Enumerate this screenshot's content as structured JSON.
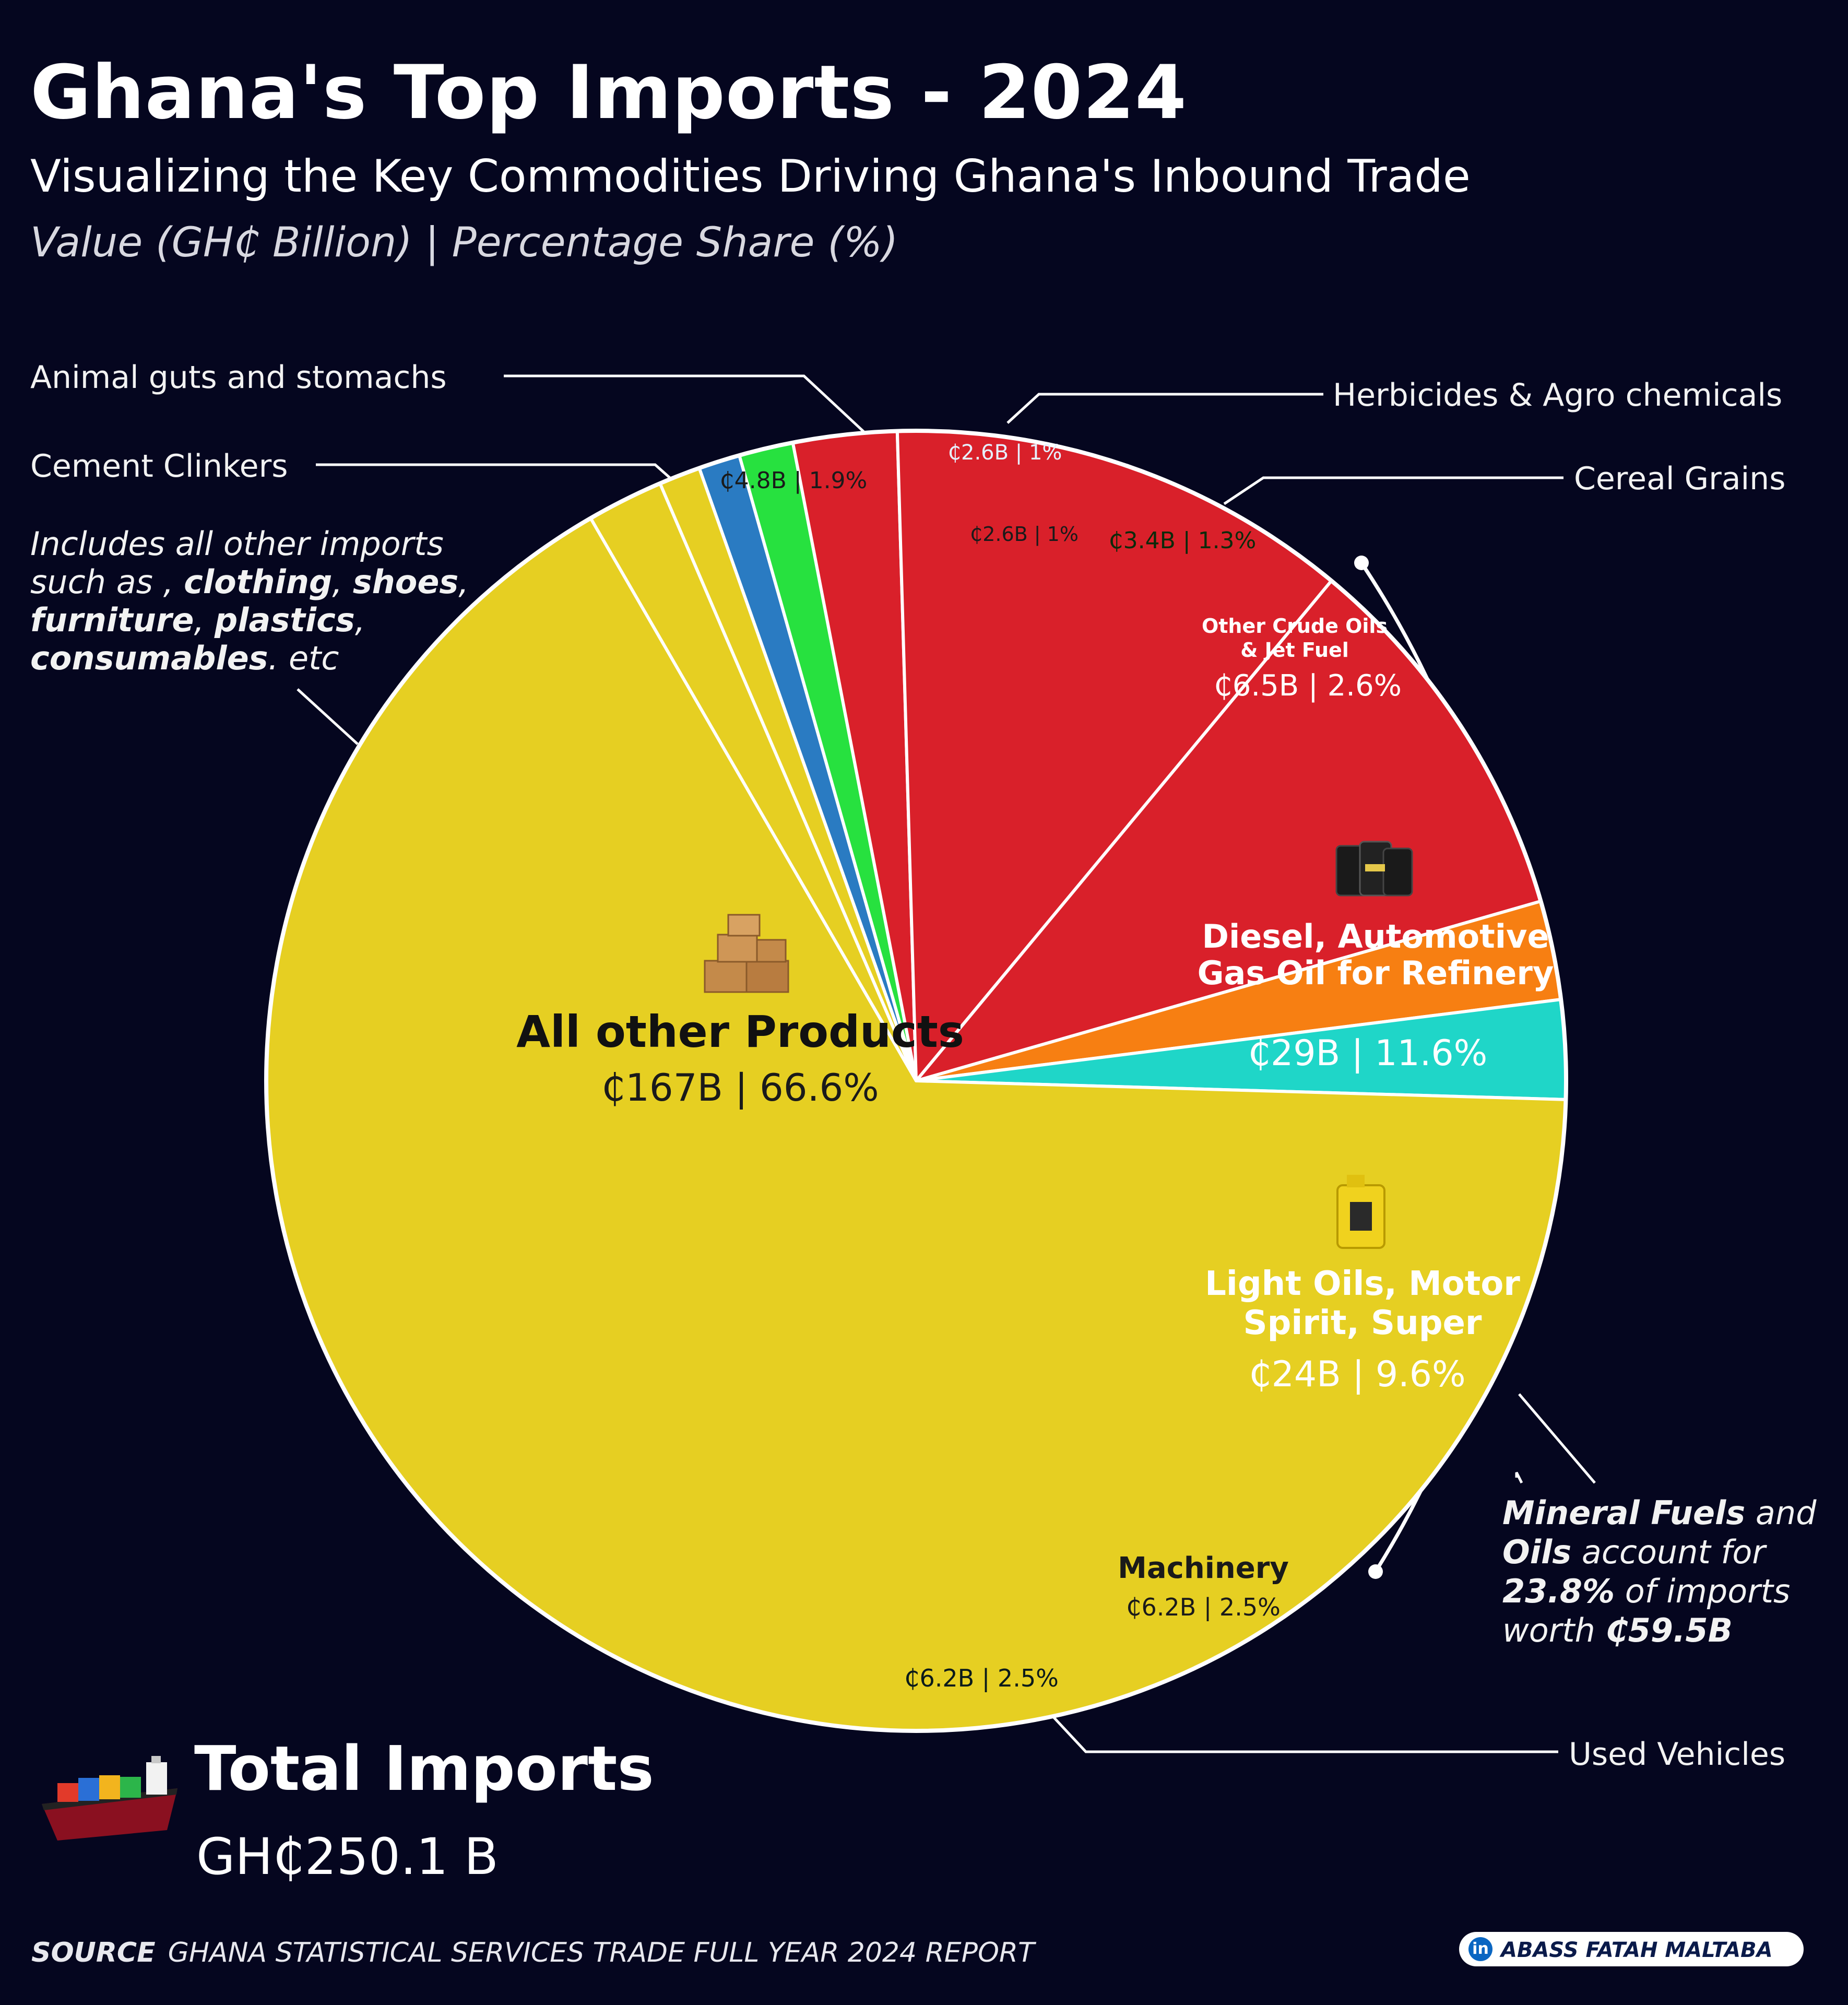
{
  "header": {
    "title": "Ghana's Top Imports - 2024",
    "subtitle": "Visualizing the Key Commodities Driving Ghana's Inbound Trade",
    "units": "Value (GH₵ Billion) | Percentage Share (%)"
  },
  "chart_data": {
    "type": "pie",
    "title": "Ghana's Top Imports - 2024",
    "subtitle": "Visualizing the Key Commodities Driving Ghana's Inbound Trade",
    "units": "Value (GH₵ Billion) | Percentage Share (%)",
    "slices": [
      {
        "label": "Herbicides & Agro chemicals",
        "value": 2.6,
        "share": 1.0,
        "value_text": "₵2.6B | 1%",
        "color": "#2a7bc2"
      },
      {
        "label": "Cereal Grains",
        "value": 3.4,
        "share": 1.3,
        "value_text": "₵3.4B | 1.3%",
        "color": "#27e13f"
      },
      {
        "label": "Other Crude Oils & Jet Fuel",
        "value": 6.5,
        "share": 2.6,
        "value_text": "₵6.5B | 2.6%",
        "color": "#d9202a"
      },
      {
        "label": "Diesel, Automotive Gas Oil for Refinery",
        "value": 29,
        "share": 11.6,
        "value_text": "₵29B | 11.6%",
        "color": "#d9202a"
      },
      {
        "label": "Light Oils, Motor Spirit, Super",
        "value": 24,
        "share": 9.6,
        "value_text": "₵24B | 9.6%",
        "color": "#d9202a"
      },
      {
        "label": "Machinery",
        "value": 6.2,
        "share": 2.5,
        "value_text": "₵6.2B | 2.5%",
        "color": "#f77f12"
      },
      {
        "label": "Used Vehicles",
        "value": 6.2,
        "share": 2.5,
        "value_text": "₵6.2B | 2.5%",
        "color": "#1fd6c8"
      },
      {
        "label": "All other Products",
        "value": 167,
        "share": 66.6,
        "value_text": "₵167B | 66.6%",
        "color": "#e6cf22"
      },
      {
        "label": "Cement Clinkers",
        "value": 4.8,
        "share": 1.9,
        "value_text": "₵4.8B | 1.9%",
        "color": "#e6cf22"
      },
      {
        "label": "Animal guts and stomachs",
        "value": 2.6,
        "share": 1.0,
        "value_text": "₵2.6B | 1%",
        "color": "#e6cf22"
      }
    ],
    "total": 250.1
  },
  "labels": {
    "animal": "Animal guts and  stomachs",
    "cement": "Cement Clinkers",
    "herbicides": "Herbicides & Agro chemicals",
    "cereal": "Cereal Grains",
    "used_vehicles": "Used Vehicles"
  },
  "slice_labels": {
    "herbicides_value": "₵2.6B | 1%",
    "cereal_value": "₵3.4B | 1.3%",
    "cement_value": "₵4.8B | 1.9%",
    "animal_value": "₵2.6B | 1%",
    "crude_title_1": "Other Crude Oils",
    "crude_title_2": "& Jet Fuel",
    "crude_value": "₵6.5B | 2.6%",
    "diesel_title_1": "Diesel, Automotive",
    "diesel_title_2": "Gas Oil for Refinery",
    "diesel_value": "₵29B | 11.6%",
    "light_title_1": "Light Oils, Motor",
    "light_title_2": "Spirit, Super",
    "light_value": "₵24B | 9.6%",
    "machinery_title": "Machinery",
    "machinery_value": "₵6.2B | 2.5%",
    "vehicles_value": "₵6.2B | 2.5%",
    "other_title": "All other Products",
    "other_value": "₵167B | 66.6%"
  },
  "note": {
    "line1": "Includes all other imports",
    "line2_pre": "such as , ",
    "clothing": "clothing",
    "comma1": ", ",
    "shoes": "shoes",
    "comma2": ",",
    "furniture": "furniture",
    "comma3": ", ",
    "plastics": "plastics",
    "comma4": ",",
    "consumables": "consumables",
    "etc": ". etc"
  },
  "mineral_note": {
    "mineral_fuels": "Mineral Fuels",
    "and": " and",
    "oils": "Oils",
    "account": " account for",
    "share": "23.8%",
    "of_imports": " of imports",
    "worth": "worth ",
    "amount": "₵59.5B"
  },
  "total": {
    "title": "Total Imports",
    "value": "GH₵250.1 B"
  },
  "source": {
    "key": "SOURCE",
    "text": "GHANA STATISTICAL SERVICES  TRADE FULL YEAR 2024 REPORT"
  },
  "credit": {
    "icon": "in",
    "name": "ABASS FATAH MALTABA"
  },
  "icons": {
    "boxes": "boxes-icon",
    "barrels": "oil-barrels-icon",
    "jerrycan": "jerrycan-icon",
    "ship": "cargo-ship-icon"
  }
}
